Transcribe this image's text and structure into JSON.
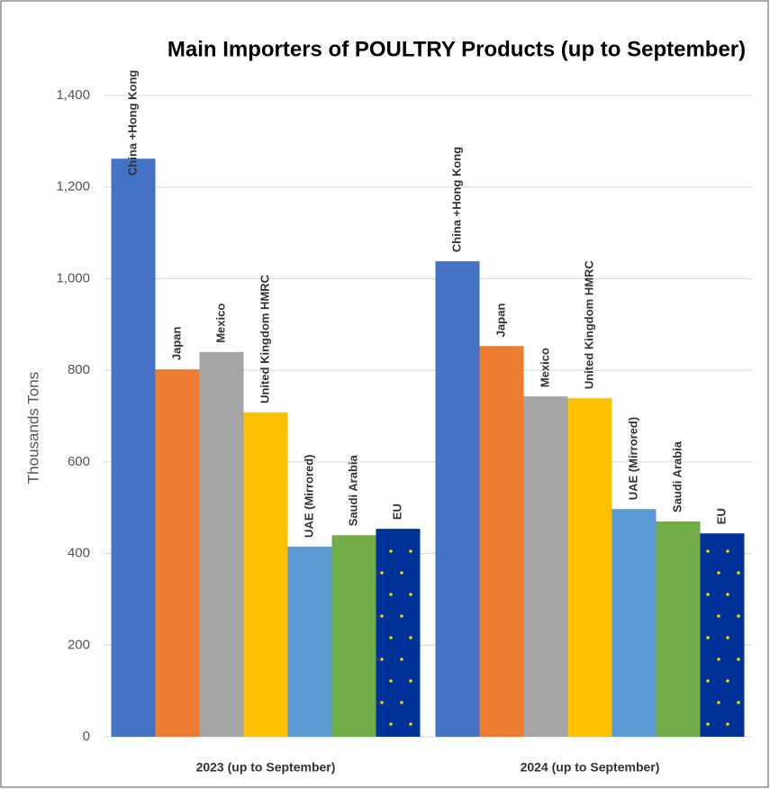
{
  "chart_data": {
    "type": "bar",
    "title": "Main Importers of POULTRY Products (up to September)",
    "y_label": "Thousands Tons",
    "categories": [
      "2023 (up to September)",
      "2024 (up to September)"
    ],
    "series": [
      {
        "name": "China +Hong Kong",
        "color": "#4472c4",
        "values": [
          1262,
          1038
        ]
      },
      {
        "name": "Japan",
        "color": "#ed7d31",
        "values": [
          802,
          853
        ]
      },
      {
        "name": "Mexico",
        "color": "#a5a5a5",
        "values": [
          840,
          743
        ]
      },
      {
        "name": "United Kingdom HMRC",
        "color": "#ffc000",
        "values": [
          708,
          739
        ]
      },
      {
        "name": "UAE (Mirrored)",
        "color": "#5b9bd5",
        "values": [
          415,
          497
        ]
      },
      {
        "name": "Saudi Arabia",
        "color": "#70ad47",
        "values": [
          440,
          470
        ]
      },
      {
        "name": "EU",
        "color": "#003399",
        "values": [
          454,
          444
        ]
      }
    ],
    "ylim": [
      0,
      1400
    ],
    "yticks": [
      0,
      200,
      400,
      600,
      800,
      {
        "value": 1000,
        "label": "1,000"
      },
      {
        "value": 1200,
        "label": "1,200"
      },
      {
        "value": 1400,
        "label": "1,400"
      }
    ],
    "grid": true
  }
}
